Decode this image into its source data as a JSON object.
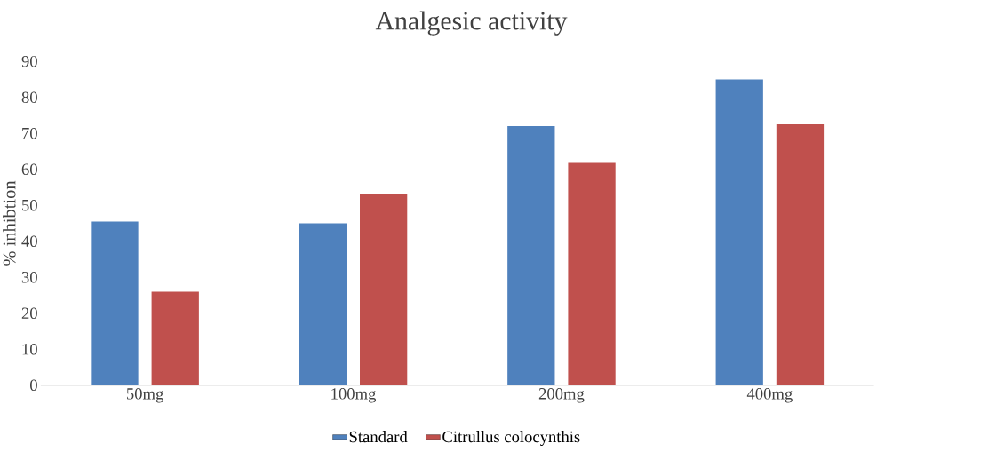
{
  "chart_data": {
    "type": "bar",
    "title": "Analgesic activity",
    "ylabel": "% inhibtion",
    "categories": [
      "50mg",
      "100mg",
      "200mg",
      "400mg"
    ],
    "series": [
      {
        "name": "Standard",
        "color": "#4f81bd",
        "values": [
          45.5,
          45,
          72,
          85
        ]
      },
      {
        "name": "Citrullus colocynthis",
        "color": "#c0504d",
        "values": [
          26,
          53,
          62,
          72.5
        ]
      }
    ],
    "ylim": [
      0,
      90
    ],
    "yticks": [
      0,
      10,
      20,
      30,
      40,
      50,
      60,
      70,
      80,
      90
    ],
    "legend": "bottom"
  }
}
